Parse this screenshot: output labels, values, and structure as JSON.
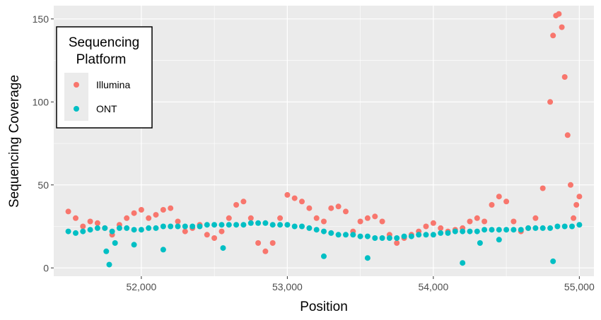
{
  "chart_data": {
    "type": "scatter",
    "xlabel": "Position",
    "ylabel": "Sequencing Coverage",
    "xlim": [
      51400,
      55100
    ],
    "ylim": [
      -5,
      158
    ],
    "xticks": [
      52000,
      53000,
      54000,
      55000
    ],
    "xtick_labels": [
      "52,000",
      "53,000",
      "54,000",
      "55,000"
    ],
    "yticks": [
      0,
      50,
      100,
      150
    ],
    "ytick_labels": [
      "0",
      "50",
      "100",
      "150"
    ],
    "grid": true,
    "legend": {
      "title_lines": [
        "Sequencing",
        "Platform"
      ],
      "position": "top-left"
    },
    "series": [
      {
        "name": "Illumina",
        "color": "#F8766D",
        "x": [
          51500,
          51550,
          51600,
          51650,
          51700,
          51750,
          51800,
          51850,
          51900,
          51950,
          52000,
          52050,
          52100,
          52150,
          52200,
          52250,
          52300,
          52350,
          52400,
          52450,
          52500,
          52550,
          52600,
          52650,
          52700,
          52750,
          52800,
          52850,
          52900,
          52950,
          53000,
          53050,
          53100,
          53150,
          53200,
          53250,
          53300,
          53350,
          53400,
          53450,
          53500,
          53550,
          53600,
          53650,
          53700,
          53750,
          53800,
          53850,
          53900,
          53950,
          54000,
          54050,
          54100,
          54150,
          54200,
          54250,
          54300,
          54350,
          54400,
          54450,
          54500,
          54550,
          54600,
          54650,
          54700,
          54750,
          54800,
          54820,
          54840,
          54860,
          54880,
          54900,
          54920,
          54940,
          54960,
          54980,
          55000
        ],
        "y": [
          34,
          30,
          25,
          28,
          27,
          24,
          20,
          26,
          30,
          33,
          35,
          30,
          32,
          35,
          36,
          28,
          22,
          24,
          26,
          20,
          18,
          22,
          30,
          38,
          40,
          30,
          15,
          10,
          15,
          30,
          44,
          42,
          40,
          36,
          30,
          28,
          36,
          37,
          34,
          22,
          28,
          30,
          31,
          28,
          20,
          15,
          18,
          20,
          22,
          25,
          27,
          24,
          22,
          23,
          24,
          28,
          30,
          28,
          38,
          43,
          40,
          28,
          22,
          24,
          30,
          48,
          100,
          140,
          152,
          153,
          145,
          115,
          80,
          50,
          30,
          38,
          43
        ]
      },
      {
        "name": "ONT",
        "color": "#00BFC4",
        "x": [
          51500,
          51550,
          51600,
          51650,
          51700,
          51750,
          51800,
          51850,
          51900,
          51950,
          52000,
          52050,
          52100,
          52150,
          52200,
          52250,
          52300,
          52350,
          52400,
          52450,
          52500,
          52550,
          52600,
          52650,
          52700,
          52750,
          52800,
          52850,
          52900,
          52950,
          53000,
          53050,
          53100,
          53150,
          53200,
          53250,
          53300,
          53350,
          53400,
          53450,
          53500,
          53550,
          53600,
          53650,
          53700,
          53750,
          53800,
          53850,
          53900,
          53950,
          54000,
          54050,
          54100,
          54150,
          54200,
          54250,
          54300,
          54350,
          54400,
          54450,
          54500,
          54550,
          54600,
          54650,
          54700,
          54750,
          54800,
          54850,
          54900,
          54950,
          55000,
          51780,
          51760,
          51820,
          52560,
          53250,
          53550,
          54200,
          54320,
          54820,
          54450,
          51950,
          52150
        ],
        "y": [
          22,
          21,
          22,
          23,
          24,
          24,
          22,
          24,
          24,
          23,
          23,
          24,
          24,
          25,
          25,
          25,
          25,
          25,
          25,
          26,
          26,
          26,
          26,
          26,
          26,
          27,
          27,
          27,
          26,
          26,
          26,
          25,
          25,
          24,
          23,
          22,
          21,
          20,
          20,
          20,
          19,
          19,
          18,
          18,
          18,
          18,
          19,
          19,
          20,
          20,
          20,
          21,
          21,
          22,
          22,
          22,
          22,
          23,
          23,
          23,
          23,
          23,
          23,
          24,
          24,
          24,
          24,
          25,
          25,
          25,
          26,
          2,
          10,
          15,
          12,
          7,
          6,
          3,
          15,
          4,
          17,
          14,
          11
        ]
      }
    ]
  }
}
